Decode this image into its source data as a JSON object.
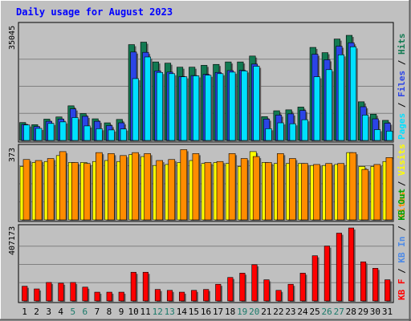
{
  "title": "Daily usage for August 2023",
  "colors": {
    "background": "#c0c0c0",
    "title": "#0000ff",
    "hits": "#127a52",
    "files": "#2b44e6",
    "pages": "#00e0ff",
    "visits": "#ffff00",
    "sites": "#ff8c00",
    "kbin": "#4d8ae6",
    "kbout": "#00a000",
    "kbf": "#ff0000",
    "grid": "#808080"
  },
  "chart_data": [
    {
      "type": "bar",
      "name": "hits-files-pages",
      "ytick_label": "35045",
      "ylim": [
        0,
        35045
      ],
      "legend": [
        {
          "label": "Hits",
          "color": "#127a52"
        },
        {
          "label": "Files",
          "color": "#2b44e6"
        },
        {
          "label": "Pages",
          "color": "#00e0ff"
        }
      ],
      "x": [
        1,
        2,
        3,
        4,
        5,
        6,
        7,
        8,
        9,
        10,
        11,
        12,
        13,
        14,
        15,
        16,
        17,
        18,
        19,
        20,
        21,
        22,
        23,
        24,
        25,
        26,
        27,
        28,
        29,
        30,
        31
      ],
      "series": [
        {
          "name": "Hits",
          "values": [
            5800,
            5100,
            6900,
            7600,
            11200,
            8700,
            7000,
            5700,
            6800,
            31000,
            31800,
            25400,
            25000,
            23700,
            23700,
            24300,
            24600,
            25400,
            25400,
            27300,
            7700,
            9600,
            9900,
            10800,
            30100,
            28400,
            32800,
            34000,
            12500,
            8500,
            6500
          ]
        },
        {
          "name": "Files",
          "values": [
            5200,
            4500,
            6200,
            6900,
            10200,
            7800,
            6200,
            4800,
            5700,
            28600,
            28500,
            22500,
            22100,
            20700,
            21000,
            21400,
            22000,
            22600,
            22700,
            24700,
            6900,
            8200,
            8600,
            9700,
            27900,
            26100,
            30500,
            31600,
            10900,
            7000,
            5600
          ]
        },
        {
          "name": "Pages",
          "values": [
            5000,
            3900,
            5500,
            6000,
            7400,
            4700,
            3800,
            3400,
            3700,
            20000,
            27000,
            22000,
            21600,
            20600,
            20900,
            21100,
            21600,
            22100,
            22500,
            24000,
            3800,
            5700,
            5400,
            6700,
            20600,
            22900,
            27700,
            30300,
            8200,
            3500,
            3000
          ]
        }
      ]
    },
    {
      "type": "bar",
      "name": "visits-sites",
      "ytick_label": "373",
      "ylim": [
        0,
        373
      ],
      "legend": [
        {
          "label": "Visits",
          "color": "#ffff00"
        },
        {
          "label": "Sites",
          "color": "#ff8c00"
        }
      ],
      "x": [
        1,
        2,
        3,
        4,
        5,
        6,
        7,
        8,
        9,
        10,
        11,
        12,
        13,
        14,
        15,
        16,
        17,
        18,
        19,
        20,
        21,
        22,
        23,
        24,
        25,
        26,
        27,
        28,
        29,
        30,
        31
      ],
      "series": [
        {
          "name": "Visits",
          "values": [
            270,
            290,
            295,
            325,
            290,
            290,
            295,
            300,
            295,
            330,
            320,
            275,
            280,
            290,
            300,
            285,
            290,
            285,
            270,
            345,
            290,
            285,
            285,
            285,
            275,
            275,
            280,
            340,
            270,
            270,
            295
          ]
        },
        {
          "name": "Sites",
          "values": [
            305,
            300,
            310,
            345,
            290,
            285,
            340,
            335,
            325,
            340,
            335,
            300,
            305,
            355,
            335,
            290,
            295,
            335,
            310,
            320,
            290,
            335,
            310,
            285,
            280,
            285,
            285,
            340,
            255,
            280,
            315
          ]
        }
      ]
    },
    {
      "type": "bar",
      "name": "kbytes",
      "ytick_label": "407173",
      "ylim": [
        0,
        407173
      ],
      "legend": [
        {
          "label": "KB F",
          "color": "#ff0000"
        },
        {
          "label": "KB In",
          "color": "#4d8ae6"
        },
        {
          "label": "KB Out",
          "color": "#00a000"
        }
      ],
      "x": [
        1,
        2,
        3,
        4,
        5,
        6,
        7,
        8,
        9,
        10,
        11,
        12,
        13,
        14,
        15,
        16,
        17,
        18,
        19,
        20,
        21,
        22,
        23,
        24,
        25,
        26,
        27,
        28,
        29,
        30,
        31
      ],
      "weekend_days": [
        5,
        6,
        12,
        13,
        19,
        20,
        26,
        27
      ],
      "series": [
        {
          "name": "KB F",
          "values": [
            82000,
            67000,
            103000,
            99000,
            103000,
            77000,
            49000,
            49000,
            49000,
            160000,
            160000,
            64000,
            59000,
            49000,
            59000,
            64000,
            93000,
            131000,
            155000,
            202000,
            118000,
            59000,
            93000,
            155000,
            252000,
            306000,
            378000,
            407000,
            218000,
            182000,
            118000
          ]
        }
      ]
    }
  ]
}
